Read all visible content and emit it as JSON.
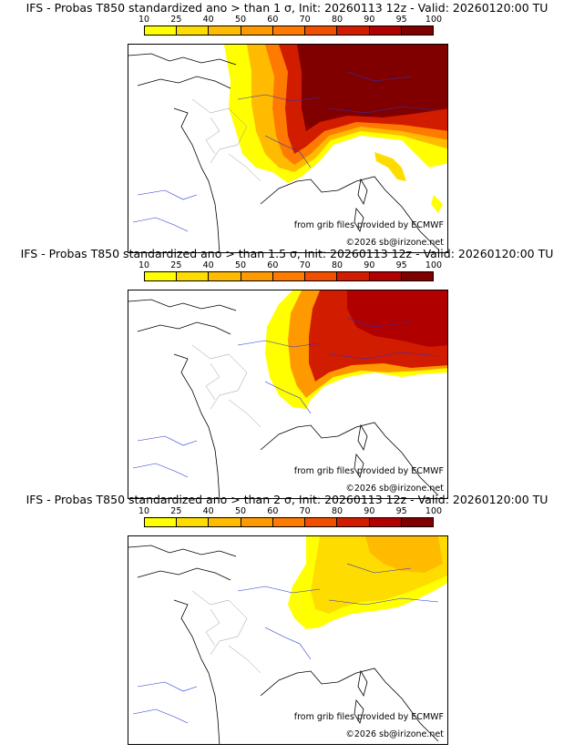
{
  "colorbar": {
    "ticks": [
      "10",
      "25",
      "40",
      "50",
      "60",
      "70",
      "80",
      "90",
      "95",
      "100"
    ],
    "colors": [
      "#ffff00",
      "#ffdc00",
      "#ffbb00",
      "#ff9900",
      "#ff7a00",
      "#f04e00",
      "#d21c00",
      "#b00000",
      "#800000"
    ]
  },
  "panels": [
    {
      "title": "IFS - Probas T850  standardized ano > than 1 σ, Init: 20260113 12z - Valid: 20260120:00 TU",
      "credit_source": "from grib files provided by ECMWF",
      "credit_copyright": "©2026 sb@irizone.net"
    },
    {
      "title": "IFS - Probas T850  standardized ano > than 1.5 σ, Init: 20260113 12z - Valid: 20260120:00 TU",
      "credit_source": "from grib files provided by ECMWF",
      "credit_copyright": "©2026 sb@irizone.net"
    },
    {
      "title": "IFS - Probas T850  standardized ano > than 2 σ, Init: 20260113 12z - Valid: 20260120:00 TU",
      "credit_source": "from grib files provided by ECMWF",
      "credit_copyright": "©2026 sb@irizone.net"
    }
  ]
}
